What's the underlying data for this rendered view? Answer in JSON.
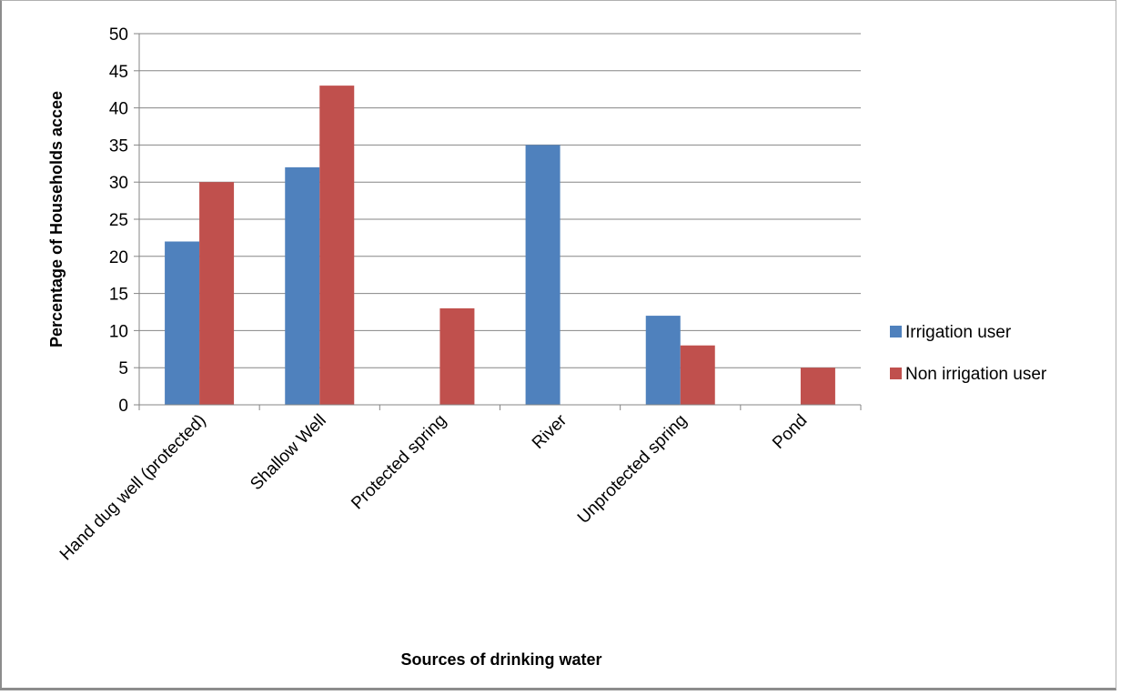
{
  "chart_data": {
    "type": "bar",
    "categories": [
      "Hand dug well (protected)",
      "Shallow Well",
      "Protected spring",
      "River",
      "Unprotected spring",
      "Pond"
    ],
    "series": [
      {
        "name": "Irrigation user",
        "color": "#4F81BD",
        "values": [
          22,
          32,
          0,
          35,
          12,
          0
        ]
      },
      {
        "name": "Non irrigation user",
        "color": "#C0504D",
        "values": [
          30,
          43,
          13,
          0,
          8,
          5
        ]
      }
    ],
    "title": "",
    "xlabel": "Sources of drinking water",
    "ylabel": "Percentage of Households accee",
    "ylim": [
      0,
      50
    ],
    "yticks": [
      0,
      5,
      10,
      15,
      20,
      25,
      30,
      35,
      40,
      45,
      50
    ],
    "grid": true,
    "legend_position": "right"
  }
}
